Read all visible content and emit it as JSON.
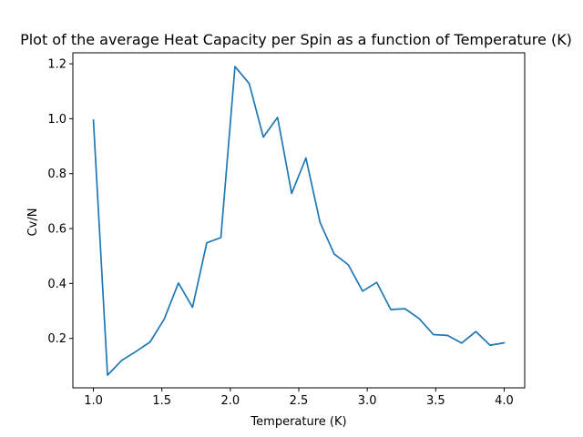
{
  "chart_data": {
    "type": "line",
    "title": "Plot of the average Heat Capacity per Spin as a function of Temperature (K)",
    "xlabel": "Temperature (K)",
    "ylabel": "Cv/N",
    "xlim": [
      0.85,
      4.15
    ],
    "ylim": [
      0.02,
      1.24
    ],
    "xticks": [
      1.0,
      1.5,
      2.0,
      2.5,
      3.0,
      3.5,
      4.0
    ],
    "xtick_labels": [
      "1.0",
      "1.5",
      "2.0",
      "2.5",
      "3.0",
      "3.5",
      "4.0"
    ],
    "yticks": [
      0.2,
      0.4,
      0.6,
      0.8,
      1.0,
      1.2
    ],
    "ytick_labels": [
      "0.2",
      "0.4",
      "0.6",
      "0.8",
      "1.0",
      "1.2"
    ],
    "grid": false,
    "series": [
      {
        "color": "#1f77b4",
        "x": [
          1.0,
          1.103,
          1.207,
          1.31,
          1.414,
          1.517,
          1.621,
          1.724,
          1.828,
          1.931,
          2.034,
          2.138,
          2.241,
          2.345,
          2.448,
          2.552,
          2.655,
          2.759,
          2.862,
          2.966,
          3.069,
          3.172,
          3.276,
          3.379,
          3.483,
          3.586,
          3.69,
          3.793,
          3.897,
          4.0
        ],
        "values": [
          0.995,
          0.066,
          0.12,
          0.152,
          0.187,
          0.27,
          0.402,
          0.313,
          0.548,
          0.567,
          1.19,
          1.128,
          0.933,
          1.005,
          0.728,
          0.857,
          0.623,
          0.507,
          0.468,
          0.372,
          0.404,
          0.305,
          0.308,
          0.272,
          0.214,
          0.211,
          0.183,
          0.225,
          0.175,
          0.184
        ]
      }
    ]
  }
}
